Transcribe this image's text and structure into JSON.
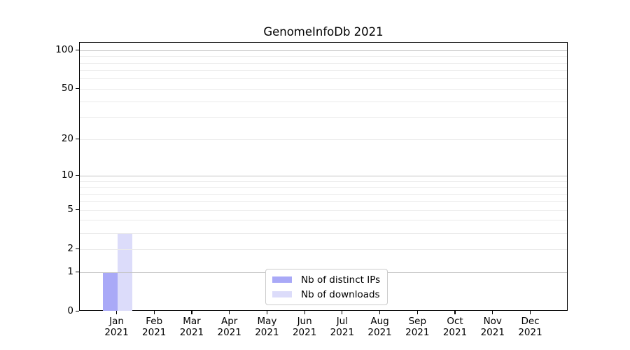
{
  "figure": {
    "title": "GenomeInfoDb 2021"
  },
  "chart_data": {
    "type": "bar",
    "title": "GenomeInfoDb 2021",
    "categories": [
      "Jan 2021",
      "Feb 2021",
      "Mar 2021",
      "Apr 2021",
      "May 2021",
      "Jun 2021",
      "Jul 2021",
      "Aug 2021",
      "Sep 2021",
      "Oct 2021",
      "Nov 2021",
      "Dec 2021"
    ],
    "series": [
      {
        "name": "Nb of distinct IPs",
        "color": "#a9a9f7",
        "values": [
          1,
          0,
          0,
          0,
          0,
          0,
          0,
          0,
          0,
          0,
          0,
          0
        ]
      },
      {
        "name": "Nb of downloads",
        "color": "#dcdcfa",
        "values": [
          3,
          0,
          0,
          0,
          0,
          0,
          0,
          0,
          0,
          0,
          0,
          0
        ]
      }
    ],
    "xlabel": "",
    "ylabel": "",
    "yticks": [
      0,
      1,
      2,
      5,
      10,
      20,
      50,
      100
    ],
    "minor_yticks": [
      3,
      4,
      6,
      7,
      8,
      9,
      30,
      40,
      60,
      70,
      80,
      90
    ],
    "yscale": "log10(1+y)",
    "ylim": [
      0,
      113
    ],
    "grid": "horizontal",
    "legend_position": "lower center"
  },
  "legend": {
    "entries": [
      {
        "label": "Nb of distinct IPs",
        "color": "#a9a9f7"
      },
      {
        "label": "Nb of downloads",
        "color": "#dcdcfa"
      }
    ]
  },
  "colors": {
    "axis": "#000000",
    "grid_decade": "#c2c2c2",
    "grid_minor": "#eaeaea",
    "background": "#ffffff"
  }
}
